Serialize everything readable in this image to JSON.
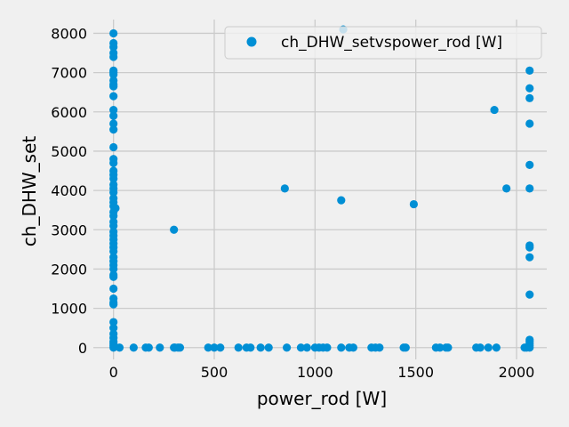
{
  "chart_data": {
    "type": "scatter",
    "title": "",
    "xlabel": "power_rod [W]",
    "ylabel": "ch_DHW_set",
    "xlim": [
      -100,
      2150
    ],
    "ylim": [
      -300,
      8350
    ],
    "xticks": [
      0,
      500,
      1000,
      1500,
      2000
    ],
    "yticks": [
      0,
      1000,
      2000,
      3000,
      4000,
      5000,
      6000,
      7000,
      8000
    ],
    "grid": true,
    "legend_position": "top-right",
    "series": [
      {
        "name": "ch_DHW_setvspower_rod [W]",
        "color": "#008fd5",
        "points": [
          [
            0,
            8000
          ],
          [
            0,
            7750
          ],
          [
            0,
            7650
          ],
          [
            0,
            7500
          ],
          [
            0,
            7400
          ],
          [
            0,
            7050
          ],
          [
            0,
            7000
          ],
          [
            0,
            6950
          ],
          [
            0,
            6800
          ],
          [
            0,
            6700
          ],
          [
            0,
            6650
          ],
          [
            0,
            6400
          ],
          [
            0,
            6050
          ],
          [
            0,
            5900
          ],
          [
            0,
            5700
          ],
          [
            0,
            5550
          ],
          [
            0,
            5100
          ],
          [
            0,
            4800
          ],
          [
            0,
            4700
          ],
          [
            0,
            4500
          ],
          [
            0,
            4400
          ],
          [
            0,
            4300
          ],
          [
            0,
            4150
          ],
          [
            0,
            4050
          ],
          [
            0,
            3950
          ],
          [
            0,
            3800
          ],
          [
            0,
            3700
          ],
          [
            0,
            3600
          ],
          [
            0,
            3450
          ],
          [
            0,
            3350
          ],
          [
            0,
            3200
          ],
          [
            0,
            3100
          ],
          [
            0,
            2950
          ],
          [
            0,
            2850
          ],
          [
            0,
            2750
          ],
          [
            0,
            2650
          ],
          [
            0,
            2550
          ],
          [
            0,
            2450
          ],
          [
            0,
            2300
          ],
          [
            0,
            2200
          ],
          [
            0,
            2100
          ],
          [
            0,
            2000
          ],
          [
            0,
            1850
          ],
          [
            0,
            1800
          ],
          [
            0,
            1500
          ],
          [
            0,
            1250
          ],
          [
            0,
            1150
          ],
          [
            0,
            1100
          ],
          [
            0,
            650
          ],
          [
            0,
            500
          ],
          [
            0,
            350
          ],
          [
            0,
            250
          ],
          [
            0,
            150
          ],
          [
            0,
            100
          ],
          [
            0,
            50
          ],
          [
            0,
            0
          ],
          [
            10,
            3550
          ],
          [
            30,
            0
          ],
          [
            100,
            0
          ],
          [
            160,
            0
          ],
          [
            175,
            0
          ],
          [
            230,
            0
          ],
          [
            300,
            0
          ],
          [
            305,
            0
          ],
          [
            320,
            0
          ],
          [
            330,
            0
          ],
          [
            470,
            0
          ],
          [
            500,
            0
          ],
          [
            530,
            0
          ],
          [
            620,
            0
          ],
          [
            660,
            0
          ],
          [
            680,
            0
          ],
          [
            730,
            0
          ],
          [
            770,
            0
          ],
          [
            860,
            0
          ],
          [
            930,
            0
          ],
          [
            960,
            0
          ],
          [
            1000,
            0
          ],
          [
            1020,
            0
          ],
          [
            1040,
            0
          ],
          [
            1060,
            0
          ],
          [
            1130,
            0
          ],
          [
            1170,
            0
          ],
          [
            1190,
            0
          ],
          [
            1280,
            0
          ],
          [
            1300,
            0
          ],
          [
            1320,
            0
          ],
          [
            1440,
            0
          ],
          [
            1450,
            0
          ],
          [
            1600,
            0
          ],
          [
            1620,
            0
          ],
          [
            1650,
            0
          ],
          [
            1660,
            0
          ],
          [
            1800,
            0
          ],
          [
            1820,
            0
          ],
          [
            1860,
            0
          ],
          [
            1900,
            0
          ],
          [
            2040,
            0
          ],
          [
            2050,
            0
          ],
          [
            300,
            3000
          ],
          [
            850,
            4050
          ],
          [
            1130,
            3750
          ],
          [
            1490,
            3650
          ],
          [
            1140,
            8100
          ],
          [
            1890,
            6050
          ],
          [
            1950,
            4050
          ],
          [
            2065,
            7050
          ],
          [
            2065,
            6600
          ],
          [
            2065,
            6350
          ],
          [
            2065,
            5700
          ],
          [
            2065,
            4650
          ],
          [
            2065,
            4050
          ],
          [
            2065,
            2600
          ],
          [
            2065,
            2550
          ],
          [
            2065,
            2300
          ],
          [
            2065,
            1350
          ],
          [
            2065,
            200
          ],
          [
            2065,
            150
          ],
          [
            2065,
            100
          ],
          [
            2065,
            50
          ],
          [
            2065,
            0
          ]
        ]
      }
    ]
  }
}
